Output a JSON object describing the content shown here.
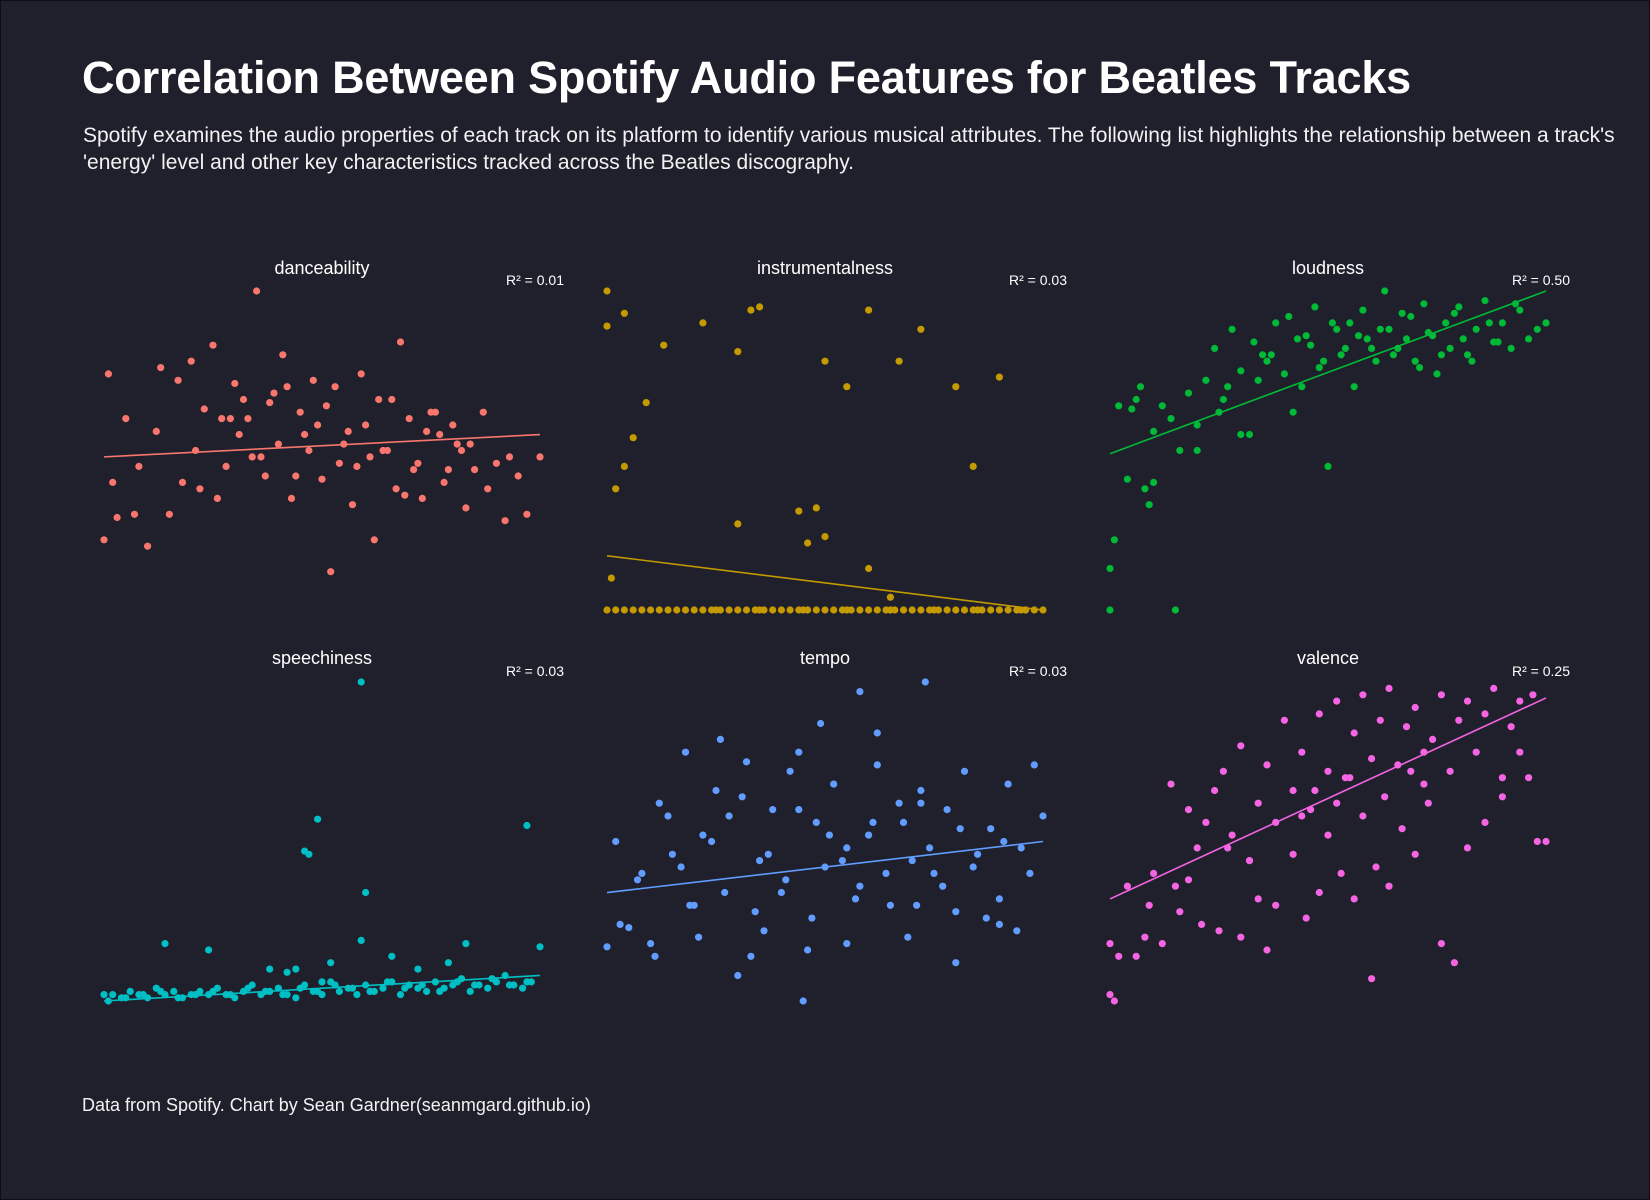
{
  "page": {
    "title": "Correlation Between Spotify Audio Features for Beatles Tracks",
    "subtitle": "Spotify examines the audio properties of each track on its platform to identify various musical attributes. The following list highlights the relationship between a track's 'energy' level and other key characteristics tracked across the Beatles discography.",
    "caption": "Data from Spotify. Chart by Sean Gardner(seanmgard.github.io)",
    "background": "#1f202b"
  },
  "chart_data": [
    {
      "type": "scatter",
      "title": "danceability",
      "r2_label": "R² = 0.01",
      "color": "#f8766d",
      "x": [
        0.0,
        0.01,
        0.02,
        0.03,
        0.05,
        0.07,
        0.08,
        0.1,
        0.12,
        0.13,
        0.15,
        0.17,
        0.18,
        0.2,
        0.21,
        0.23,
        0.25,
        0.26,
        0.28,
        0.3,
        0.31,
        0.33,
        0.35,
        0.36,
        0.38,
        0.4,
        0.41,
        0.43,
        0.45,
        0.46,
        0.48,
        0.5,
        0.52,
        0.53,
        0.55,
        0.57,
        0.58,
        0.6,
        0.62,
        0.63,
        0.65,
        0.67,
        0.68,
        0.7,
        0.72,
        0.73,
        0.75,
        0.77,
        0.78,
        0.8,
        0.82,
        0.83,
        0.85,
        0.87,
        0.88,
        0.9,
        0.92,
        0.93,
        0.95,
        0.97,
        1.0,
        0.22,
        0.27,
        0.32,
        0.37,
        0.42,
        0.47,
        0.51,
        0.56,
        0.61,
        0.66,
        0.71,
        0.76,
        0.81,
        0.29,
        0.34,
        0.39,
        0.44,
        0.49,
        0.54,
        0.59,
        0.64,
        0.69,
        0.74,
        0.79,
        0.84
      ],
      "y": [
        0.22,
        0.74,
        0.4,
        0.29,
        0.6,
        0.3,
        0.45,
        0.2,
        0.56,
        0.76,
        0.3,
        0.72,
        0.4,
        0.78,
        0.5,
        0.63,
        0.83,
        0.35,
        0.45,
        0.71,
        0.55,
        0.6,
        1.0,
        0.48,
        0.65,
        0.52,
        0.8,
        0.35,
        0.62,
        0.55,
        0.72,
        0.41,
        0.12,
        0.7,
        0.52,
        0.33,
        0.45,
        0.58,
        0.22,
        0.66,
        0.5,
        0.38,
        0.84,
        0.6,
        0.46,
        0.35,
        0.62,
        0.55,
        0.4,
        0.58,
        0.5,
        0.32,
        0.44,
        0.62,
        0.38,
        0.46,
        0.28,
        0.48,
        0.42,
        0.3,
        0.48,
        0.38,
        0.6,
        0.66,
        0.42,
        0.7,
        0.5,
        0.64,
        0.56,
        0.48,
        0.66,
        0.44,
        0.62,
        0.52,
        0.6,
        0.48,
        0.68,
        0.42,
        0.58,
        0.46,
        0.74,
        0.5,
        0.36,
        0.56,
        0.44,
        0.52
      ],
      "fit": {
        "x": [
          0,
          1
        ],
        "y": [
          0.48,
          0.55
        ]
      }
    },
    {
      "type": "scatter",
      "title": "instrumentalness",
      "r2_label": "R² = 0.03",
      "color": "#c49a00",
      "x": [
        0.0,
        0.0,
        0.01,
        0.02,
        0.04,
        0.04,
        0.06,
        0.09,
        0.13,
        0.22,
        0.3,
        0.33,
        0.35,
        0.5,
        0.55,
        0.6,
        0.67,
        0.72,
        0.8,
        0.84,
        0.9,
        0.95,
        0.96,
        0.48,
        0.46,
        0.44,
        0.5,
        0.65,
        0.6,
        0.3,
        0.0,
        0.02,
        0.04,
        0.06,
        0.08,
        0.1,
        0.12,
        0.14,
        0.16,
        0.18,
        0.2,
        0.22,
        0.24,
        0.26,
        0.28,
        0.3,
        0.32,
        0.34,
        0.36,
        0.38,
        0.4,
        0.42,
        0.44,
        0.46,
        0.48,
        0.5,
        0.52,
        0.54,
        0.56,
        0.58,
        0.6,
        0.62,
        0.64,
        0.66,
        0.68,
        0.7,
        0.72,
        0.74,
        0.76,
        0.78,
        0.8,
        0.82,
        0.84,
        0.86,
        0.88,
        0.9,
        0.92,
        0.94,
        0.96,
        0.98,
        1.0,
        0.25,
        0.35,
        0.45,
        0.55,
        0.65,
        0.75,
        0.85
      ],
      "y": [
        0.89,
        1.0,
        0.1,
        0.38,
        0.93,
        0.45,
        0.54,
        0.65,
        0.83,
        0.9,
        0.81,
        0.94,
        0.95,
        0.78,
        0.7,
        0.94,
        0.78,
        0.88,
        0.7,
        0.45,
        0.73,
        0.0,
        0.0,
        0.32,
        0.21,
        0.31,
        0.23,
        0.04,
        0.13,
        0.27,
        0.0,
        0.0,
        0.0,
        0.0,
        0.0,
        0.0,
        0.0,
        0.0,
        0.0,
        0.0,
        0.0,
        0.0,
        0.0,
        0.0,
        0.0,
        0.0,
        0.0,
        0.0,
        0.0,
        0.0,
        0.0,
        0.0,
        0.0,
        0.0,
        0.0,
        0.0,
        0.0,
        0.0,
        0.0,
        0.0,
        0.0,
        0.0,
        0.0,
        0.0,
        0.0,
        0.0,
        0.0,
        0.0,
        0.0,
        0.0,
        0.0,
        0.0,
        0.0,
        0.0,
        0.0,
        0.0,
        0.0,
        0.0,
        0.0,
        0.0,
        0.0,
        0.0,
        0.0,
        0.0,
        0.0,
        0.0,
        0.0,
        0.0
      ],
      "fit": {
        "x": [
          0,
          1
        ],
        "y": [
          0.17,
          0.0
        ]
      }
    },
    {
      "type": "scatter",
      "title": "loudness",
      "r2_label": "R² = 0.50",
      "color": "#00b936",
      "x": [
        0.0,
        0.01,
        0.0,
        0.15,
        0.04,
        0.09,
        0.1,
        0.07,
        0.08,
        0.02,
        0.05,
        0.12,
        0.14,
        0.18,
        0.2,
        0.22,
        0.24,
        0.25,
        0.27,
        0.28,
        0.3,
        0.32,
        0.33,
        0.35,
        0.36,
        0.38,
        0.4,
        0.41,
        0.43,
        0.44,
        0.46,
        0.47,
        0.49,
        0.5,
        0.52,
        0.54,
        0.55,
        0.57,
        0.58,
        0.6,
        0.62,
        0.63,
        0.65,
        0.67,
        0.68,
        0.7,
        0.72,
        0.73,
        0.75,
        0.77,
        0.78,
        0.8,
        0.82,
        0.84,
        0.86,
        0.88,
        0.9,
        0.92,
        0.94,
        0.96,
        0.98,
        1.0,
        0.3,
        0.34,
        0.37,
        0.42,
        0.45,
        0.48,
        0.51,
        0.53,
        0.56,
        0.59,
        0.61,
        0.64,
        0.66,
        0.69,
        0.71,
        0.74,
        0.76,
        0.79,
        0.81,
        0.83,
        0.87,
        0.89,
        0.93,
        0.2,
        0.26,
        0.16,
        0.1,
        0.06
      ],
      "y": [
        0.0,
        0.22,
        0.13,
        0.0,
        0.41,
        0.33,
        0.4,
        0.7,
        0.38,
        0.64,
        0.63,
        0.64,
        0.6,
        0.68,
        0.5,
        0.72,
        0.82,
        0.62,
        0.7,
        0.88,
        0.75,
        0.55,
        0.84,
        0.8,
        0.78,
        0.9,
        0.74,
        0.92,
        0.85,
        0.7,
        0.83,
        0.95,
        0.78,
        0.45,
        0.88,
        0.82,
        0.9,
        0.86,
        0.94,
        0.82,
        0.88,
        1.0,
        0.8,
        0.93,
        0.85,
        0.78,
        0.96,
        0.87,
        0.74,
        0.9,
        0.82,
        0.95,
        0.8,
        0.88,
        0.97,
        0.84,
        0.9,
        0.82,
        0.94,
        0.85,
        0.88,
        0.9,
        0.55,
        0.72,
        0.8,
        0.62,
        0.86,
        0.76,
        0.9,
        0.8,
        0.7,
        0.85,
        0.78,
        0.88,
        0.82,
        0.92,
        0.76,
        0.86,
        0.8,
        0.93,
        0.85,
        0.78,
        0.9,
        0.84,
        0.96,
        0.58,
        0.66,
        0.5,
        0.56,
        0.66
      ],
      "fit": {
        "x": [
          0,
          1
        ],
        "y": [
          0.49,
          1.0
        ]
      }
    },
    {
      "type": "scatter",
      "title": "speechiness",
      "r2_label": "R² = 0.03",
      "color": "#00bfc4",
      "x": [
        0.59,
        0.49,
        0.46,
        0.47,
        0.6,
        0.14,
        0.24,
        0.42,
        0.59,
        0.83,
        0.97,
        1.0,
        0.38,
        0.5,
        0.0,
        0.02,
        0.04,
        0.06,
        0.08,
        0.1,
        0.12,
        0.14,
        0.16,
        0.18,
        0.2,
        0.22,
        0.24,
        0.26,
        0.28,
        0.3,
        0.32,
        0.34,
        0.36,
        0.38,
        0.4,
        0.42,
        0.44,
        0.46,
        0.48,
        0.5,
        0.52,
        0.54,
        0.56,
        0.58,
        0.6,
        0.62,
        0.64,
        0.66,
        0.68,
        0.7,
        0.72,
        0.74,
        0.76,
        0.78,
        0.8,
        0.82,
        0.84,
        0.86,
        0.88,
        0.9,
        0.92,
        0.94,
        0.96,
        0.98,
        0.01,
        0.05,
        0.09,
        0.13,
        0.17,
        0.21,
        0.25,
        0.29,
        0.33,
        0.37,
        0.41,
        0.45,
        0.49,
        0.53,
        0.57,
        0.61,
        0.65,
        0.69,
        0.73,
        0.77,
        0.81,
        0.85,
        0.89,
        0.93,
        0.97,
        0.44,
        0.52,
        0.66,
        0.72,
        0.79
      ],
      "y": [
        1.0,
        0.57,
        0.47,
        0.46,
        0.34,
        0.18,
        0.16,
        0.09,
        0.19,
        0.18,
        0.55,
        0.17,
        0.1,
        0.06,
        0.02,
        0.02,
        0.01,
        0.03,
        0.02,
        0.01,
        0.04,
        0.02,
        0.03,
        0.01,
        0.02,
        0.03,
        0.02,
        0.04,
        0.02,
        0.01,
        0.03,
        0.05,
        0.02,
        0.03,
        0.04,
        0.02,
        0.01,
        0.05,
        0.03,
        0.02,
        0.06,
        0.03,
        0.04,
        0.02,
        0.05,
        0.03,
        0.04,
        0.06,
        0.02,
        0.05,
        0.04,
        0.03,
        0.06,
        0.04,
        0.05,
        0.07,
        0.03,
        0.05,
        0.04,
        0.06,
        0.08,
        0.05,
        0.04,
        0.06,
        0.0,
        0.01,
        0.02,
        0.03,
        0.01,
        0.02,
        0.03,
        0.02,
        0.04,
        0.03,
        0.02,
        0.04,
        0.03,
        0.05,
        0.04,
        0.03,
        0.06,
        0.04,
        0.05,
        0.03,
        0.06,
        0.05,
        0.07,
        0.05,
        0.06,
        0.1,
        0.12,
        0.14,
        0.1,
        0.12
      ],
      "fit": {
        "x": [
          0,
          1
        ],
        "y": [
          0.0,
          0.08
        ]
      }
    },
    {
      "type": "scatter",
      "title": "tempo",
      "r2_label": "R² = 0.03",
      "color": "#619cff",
      "x": [
        0.58,
        0.73,
        0.49,
        0.0,
        0.02,
        0.05,
        0.08,
        0.1,
        0.12,
        0.15,
        0.18,
        0.2,
        0.22,
        0.25,
        0.28,
        0.3,
        0.32,
        0.35,
        0.38,
        0.4,
        0.42,
        0.45,
        0.48,
        0.5,
        0.52,
        0.55,
        0.58,
        0.6,
        0.62,
        0.65,
        0.68,
        0.7,
        0.72,
        0.75,
        0.78,
        0.8,
        0.82,
        0.85,
        0.88,
        0.9,
        0.92,
        0.95,
        0.98,
        1.0,
        0.03,
        0.07,
        0.11,
        0.14,
        0.17,
        0.21,
        0.24,
        0.27,
        0.31,
        0.34,
        0.37,
        0.41,
        0.44,
        0.47,
        0.51,
        0.54,
        0.57,
        0.61,
        0.64,
        0.67,
        0.71,
        0.74,
        0.77,
        0.81,
        0.84,
        0.87,
        0.91,
        0.94,
        0.97,
        0.26,
        0.44,
        0.62,
        0.72,
        0.33,
        0.46,
        0.55,
        0.69,
        0.8,
        0.9,
        0.19,
        0.36
      ],
      "y": [
        0.97,
        1.0,
        0.87,
        0.17,
        0.5,
        0.23,
        0.4,
        0.18,
        0.62,
        0.46,
        0.78,
        0.3,
        0.52,
        0.66,
        0.58,
        0.08,
        0.75,
        0.44,
        0.6,
        0.34,
        0.72,
        0.0,
        0.56,
        0.42,
        0.68,
        0.48,
        0.36,
        0.52,
        0.74,
        0.3,
        0.56,
        0.44,
        0.66,
        0.4,
        0.6,
        0.28,
        0.72,
        0.46,
        0.54,
        0.32,
        0.68,
        0.48,
        0.74,
        0.58,
        0.24,
        0.38,
        0.14,
        0.58,
        0.42,
        0.2,
        0.5,
        0.34,
        0.64,
        0.28,
        0.46,
        0.38,
        0.6,
        0.26,
        0.52,
        0.44,
        0.32,
        0.56,
        0.4,
        0.62,
        0.3,
        0.48,
        0.36,
        0.54,
        0.42,
        0.26,
        0.5,
        0.22,
        0.4,
        0.82,
        0.78,
        0.84,
        0.62,
        0.14,
        0.16,
        0.18,
        0.2,
        0.12,
        0.24,
        0.3,
        0.22
      ],
      "fit": {
        "x": [
          0,
          1
        ],
        "y": [
          0.34,
          0.5
        ]
      }
    },
    {
      "type": "scatter",
      "title": "valence",
      "r2_label": "R² = 0.25",
      "color": "#f564e3",
      "x": [
        0.0,
        0.0,
        0.01,
        0.02,
        0.04,
        0.06,
        0.08,
        0.1,
        0.12,
        0.14,
        0.16,
        0.18,
        0.2,
        0.22,
        0.24,
        0.26,
        0.28,
        0.3,
        0.32,
        0.34,
        0.36,
        0.38,
        0.4,
        0.42,
        0.44,
        0.46,
        0.48,
        0.5,
        0.52,
        0.54,
        0.56,
        0.58,
        0.6,
        0.62,
        0.64,
        0.66,
        0.68,
        0.7,
        0.72,
        0.74,
        0.76,
        0.78,
        0.8,
        0.82,
        0.84,
        0.86,
        0.88,
        0.9,
        0.92,
        0.94,
        0.96,
        0.98,
        1.0,
        0.97,
        0.94,
        0.79,
        0.76,
        0.6,
        0.36,
        0.27,
        0.09,
        0.15,
        0.18,
        0.25,
        0.32,
        0.38,
        0.42,
        0.45,
        0.48,
        0.5,
        0.53,
        0.56,
        0.58,
        0.61,
        0.64,
        0.67,
        0.7,
        0.73,
        0.82,
        0.86,
        0.9,
        0.44,
        0.47,
        0.52,
        0.55,
        0.63,
        0.69,
        0.72,
        0.21,
        0.3,
        0.34
      ],
      "y": [
        0.02,
        0.18,
        0.0,
        0.14,
        0.36,
        0.14,
        0.2,
        0.4,
        0.18,
        0.68,
        0.28,
        0.6,
        0.48,
        0.56,
        0.66,
        0.72,
        0.52,
        0.8,
        0.44,
        0.62,
        0.74,
        0.56,
        0.88,
        0.66,
        0.78,
        0.6,
        0.9,
        0.72,
        0.94,
        0.7,
        0.84,
        0.96,
        0.76,
        0.88,
        0.98,
        0.74,
        0.86,
        0.92,
        0.68,
        0.82,
        0.96,
        0.72,
        0.88,
        0.94,
        0.78,
        0.9,
        0.98,
        0.7,
        0.86,
        0.94,
        0.7,
        0.5,
        0.5,
        0.96,
        0.78,
        0.12,
        0.18,
        0.07,
        0.16,
        0.48,
        0.3,
        0.36,
        0.38,
        0.22,
        0.44,
        0.3,
        0.46,
        0.26,
        0.34,
        0.52,
        0.4,
        0.32,
        0.58,
        0.42,
        0.36,
        0.54,
        0.46,
        0.62,
        0.48,
        0.56,
        0.64,
        0.58,
        0.66,
        0.62,
        0.7,
        0.64,
        0.72,
        0.78,
        0.24,
        0.2,
        0.32
      ],
      "fit": {
        "x": [
          0,
          1
        ],
        "y": [
          0.32,
          0.95
        ]
      }
    }
  ]
}
